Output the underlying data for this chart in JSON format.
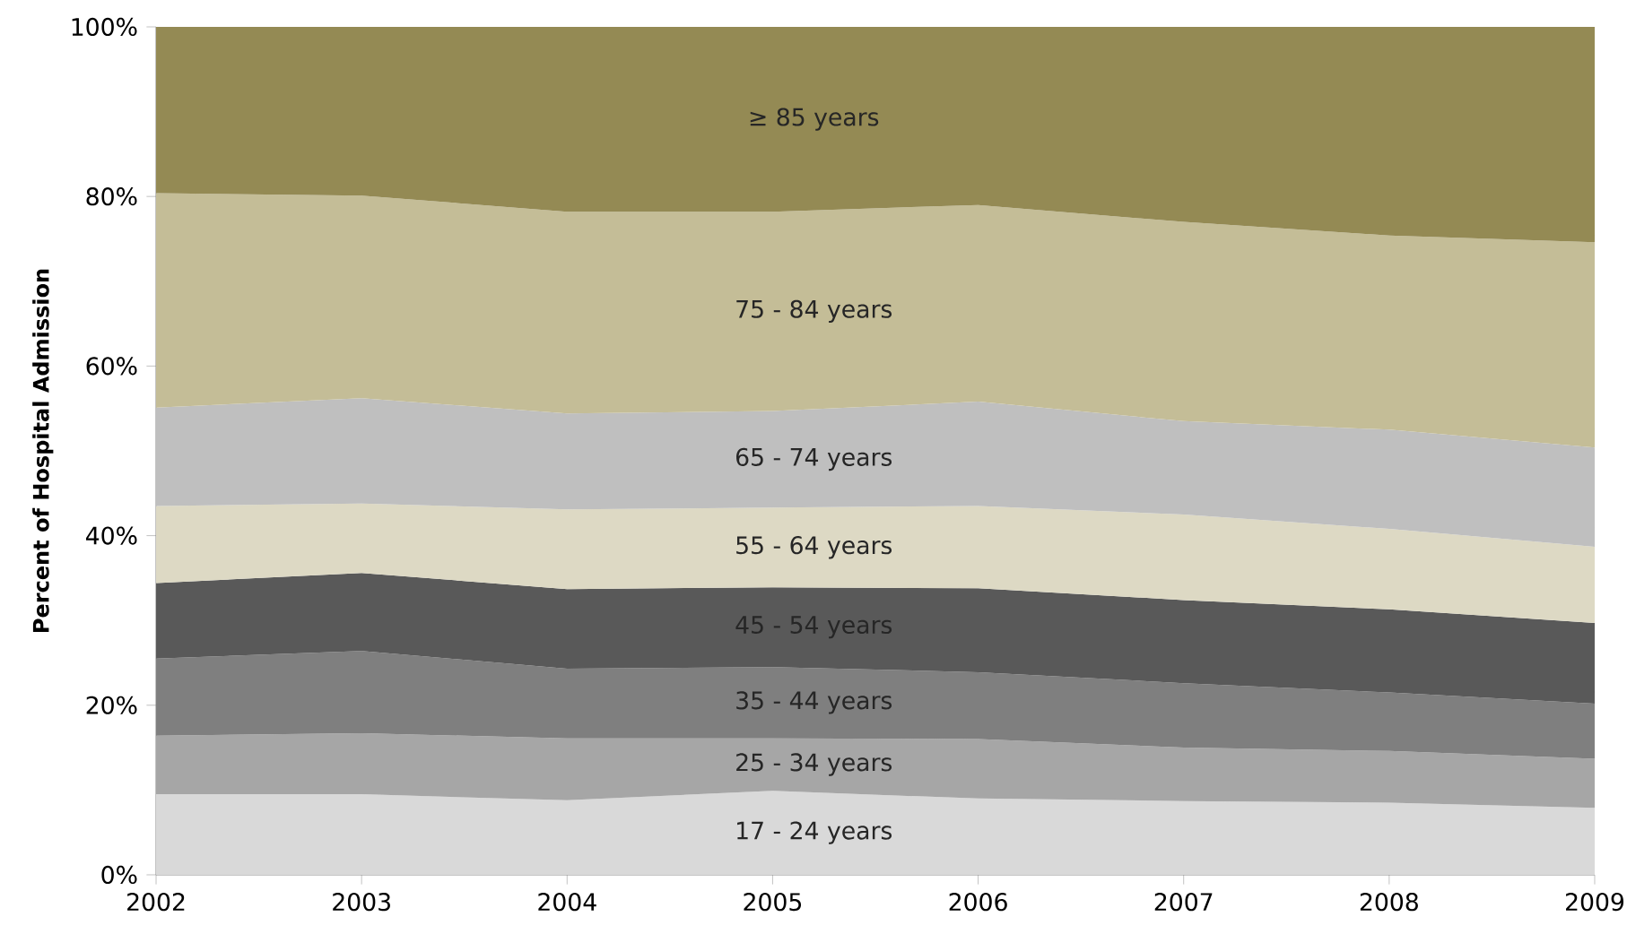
{
  "chart_data": {
    "type": "area",
    "stacked": true,
    "ylabel": "Percent of Hospital Admission",
    "x": [
      2002,
      2003,
      2004,
      2005,
      2006,
      2007,
      2008,
      2009
    ],
    "xlim": [
      2002,
      2009
    ],
    "xticks": [
      2002,
      2003,
      2004,
      2005,
      2006,
      2007,
      2008,
      2009
    ],
    "ylim": [
      0,
      100
    ],
    "yticks": [
      {
        "value": 0,
        "label": "0%"
      },
      {
        "value": 20,
        "label": "20%"
      },
      {
        "value": 40,
        "label": "40%"
      },
      {
        "value": 60,
        "label": "60%"
      },
      {
        "value": 80,
        "label": "80%"
      },
      {
        "value": 100,
        "label": "100%"
      }
    ],
    "grid": false,
    "legend": false,
    "series": [
      {
        "name": "17 - 24 years",
        "color": "#d9d9d9",
        "values": [
          9.5,
          9.5,
          8.8,
          9.9,
          9.0,
          8.7,
          8.5,
          7.9
        ]
      },
      {
        "name": "25 - 34 years",
        "color": "#a6a6a6",
        "values": [
          6.9,
          7.2,
          7.3,
          6.2,
          7.0,
          6.3,
          6.1,
          5.8
        ]
      },
      {
        "name": "35 - 44 years",
        "color": "#7f7f7f",
        "values": [
          9.1,
          9.7,
          8.2,
          8.4,
          7.9,
          7.6,
          6.9,
          6.5
        ]
      },
      {
        "name": "45 - 54 years",
        "color": "#595959",
        "values": [
          8.9,
          9.2,
          9.4,
          9.4,
          9.9,
          9.8,
          9.8,
          9.5
        ]
      },
      {
        "name": "55 - 64 years",
        "color": "#ddd9c4",
        "values": [
          9.1,
          8.2,
          9.4,
          9.4,
          9.7,
          10.1,
          9.5,
          9.0
        ]
      },
      {
        "name": "65 - 74 years",
        "color": "#bfbfbf",
        "values": [
          11.6,
          12.4,
          11.3,
          11.4,
          12.3,
          11.0,
          11.7,
          11.7
        ]
      },
      {
        "name": "75 - 84 years",
        "color": "#c4bd97",
        "values": [
          25.3,
          23.9,
          23.8,
          23.5,
          23.2,
          23.5,
          22.9,
          24.2
        ]
      },
      {
        "name": "≥ 85 years",
        "color": "#948a54",
        "values": [
          19.6,
          19.9,
          21.8,
          21.8,
          21.0,
          23.0,
          24.6,
          25.4
        ]
      }
    ]
  }
}
